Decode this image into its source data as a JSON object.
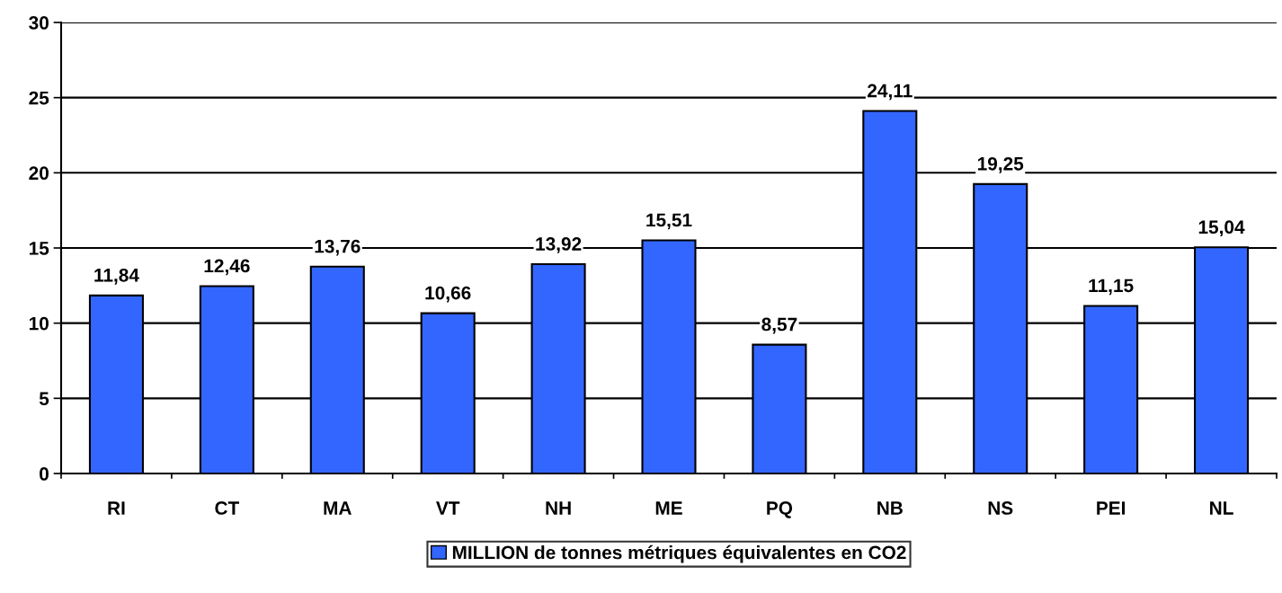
{
  "chart_data": {
    "type": "bar",
    "categories": [
      "RI",
      "CT",
      "MA",
      "VT",
      "NH",
      "ME",
      "PQ",
      "NB",
      "NS",
      "PEI",
      "NL"
    ],
    "series": [
      {
        "name": "MILLION de tonnes métriques équivalentes en CO2",
        "color": "#3366ff",
        "values": [
          11.84,
          12.46,
          13.76,
          10.66,
          13.92,
          15.51,
          8.57,
          24.11,
          19.25,
          11.15,
          15.04
        ],
        "value_labels": [
          "11,84",
          "12,46",
          "13,76",
          "10,66",
          "13,92",
          "15,51",
          "8,57",
          "24,11",
          "19,25",
          "11,15",
          "15,04"
        ]
      }
    ],
    "ylim": [
      0,
      30
    ],
    "yticks": [
      0,
      5,
      10,
      15,
      20,
      25,
      30
    ],
    "grid": "y",
    "legend": "bottom"
  }
}
